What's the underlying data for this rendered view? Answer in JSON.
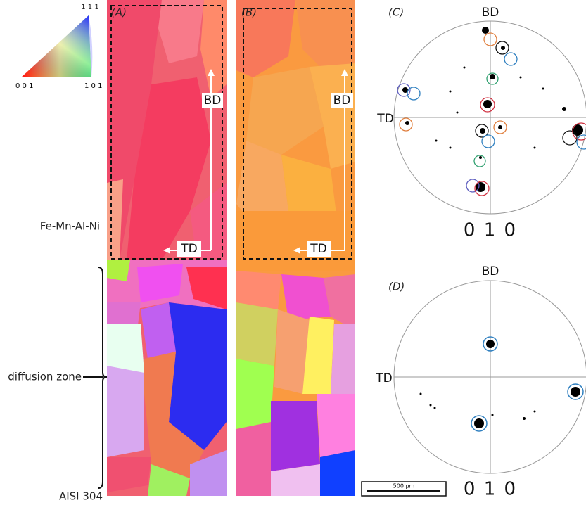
{
  "ipf_key": {
    "top": "1 1 1",
    "left": "0 0 1",
    "right": "1 0 1"
  },
  "maps": [
    {
      "label": "(A)",
      "bd": "BD",
      "td": "TD"
    },
    {
      "label": "(B)",
      "bd": "BD",
      "td": "TD"
    }
  ],
  "side_labels": {
    "top": "Fe-Mn-Al-Ni",
    "middle": "diffusion zone",
    "bottom": "AISI 304"
  },
  "scale_bar": "500 µm",
  "pole_figures": [
    {
      "label": "(C)",
      "top": "BD",
      "left": "TD",
      "bottom": "0 1 0"
    },
    {
      "label": "(D)",
      "top": "BD",
      "left": "TD",
      "bottom": "0 1 0"
    }
  ]
}
